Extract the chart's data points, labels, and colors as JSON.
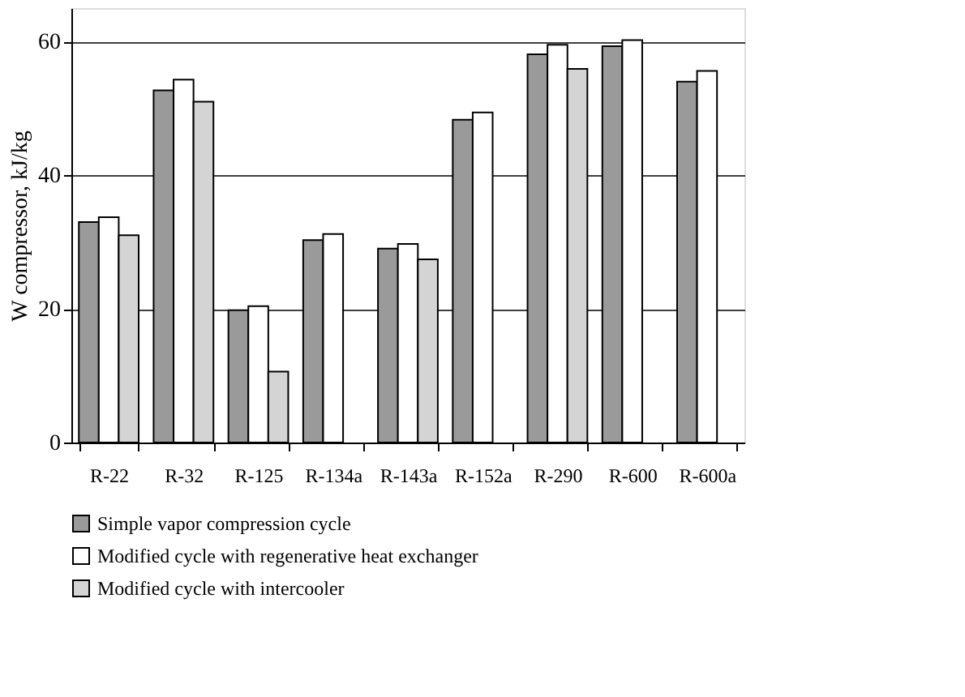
{
  "chart_data": {
    "type": "bar",
    "ylabel": "W compressor, kJ/kg",
    "categories": [
      "R-22",
      "R-32",
      "R-125",
      "R-134a",
      "R-143a",
      "R-152a",
      "R-290",
      "R-600",
      "R-600a"
    ],
    "series": [
      {
        "name": "Simple vapor compression cycle",
        "color": "#9a9a9a",
        "values": [
          33,
          52.7,
          19.8,
          30.3,
          29,
          48.3,
          58.1,
          59.3,
          54
        ]
      },
      {
        "name": "Modified cycle with regenerative heat exchanger",
        "color": "#ffffff",
        "values": [
          33.7,
          54.3,
          20.4,
          31.2,
          29.7,
          49.4,
          59.5,
          60.2,
          55.6
        ]
      },
      {
        "name": "Modified cycle with intercooler",
        "color": "#d4d4d4",
        "values": [
          31,
          51,
          10.6,
          null,
          27.4,
          null,
          55.9,
          null,
          null
        ]
      }
    ],
    "ylim": [
      0,
      65
    ],
    "yticks": [
      0,
      20,
      40,
      60
    ],
    "grid": "y",
    "legend": "bottom"
  }
}
